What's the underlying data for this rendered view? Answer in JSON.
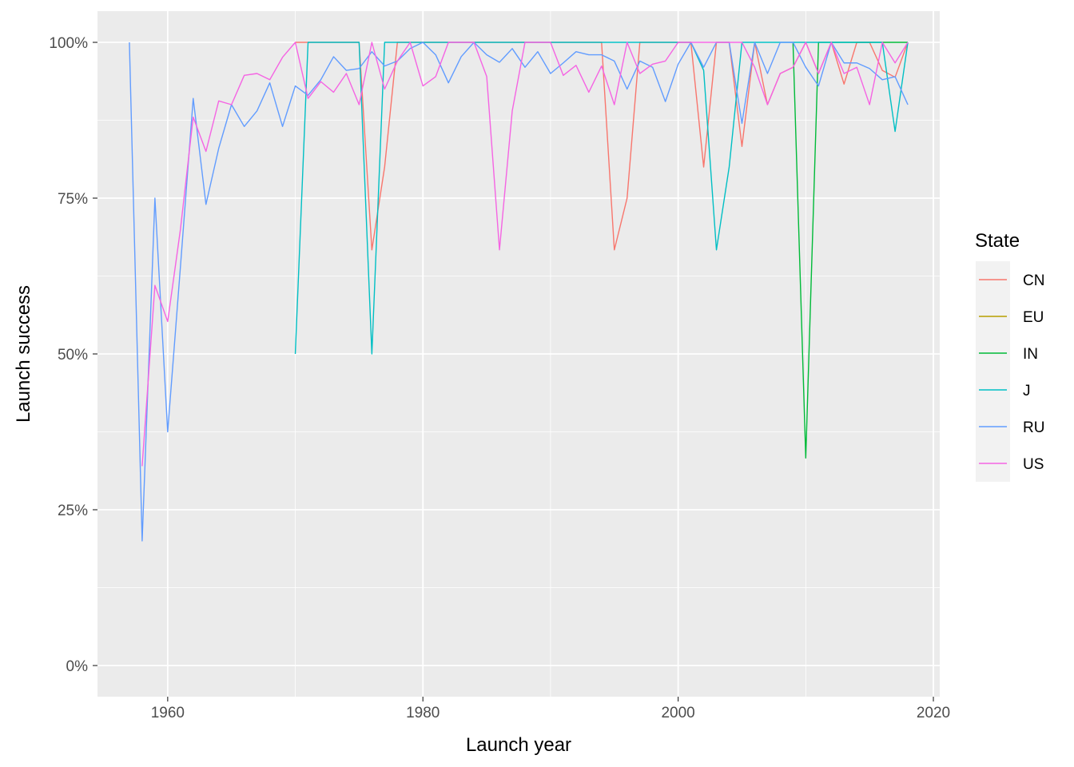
{
  "chart_data": {
    "type": "line",
    "xlabel": "Launch year",
    "ylabel": "Launch success",
    "xlim": [
      1954.5,
      2020.5
    ],
    "ylim": [
      -0.05,
      1.05
    ],
    "x_ticks": [
      1960,
      1980,
      2000,
      2020
    ],
    "x_tick_labels": [
      "1960",
      "1980",
      "2000",
      "2020"
    ],
    "y_ticks": [
      0,
      0.25,
      0.5,
      0.75,
      1.0
    ],
    "y_tick_labels": [
      "0%",
      "25%",
      "50%",
      "75%",
      "100%"
    ],
    "grid": true,
    "background": "#EBEBEB",
    "legend": {
      "title": "State",
      "position": "right"
    },
    "series": [
      {
        "name": "CN",
        "color": "#F8766D",
        "points": [
          [
            1970,
            1
          ],
          [
            1971,
            1
          ],
          [
            1972,
            1
          ],
          [
            1973,
            1
          ],
          [
            1974,
            1
          ],
          [
            1975,
            1
          ],
          [
            1976,
            0.667
          ],
          [
            1977,
            0.8
          ],
          [
            1978,
            1
          ],
          [
            1979,
            1
          ],
          [
            1980,
            1
          ],
          [
            1981,
            1
          ],
          [
            1982,
            1
          ],
          [
            1983,
            1
          ],
          [
            1984,
            1
          ],
          [
            1985,
            1
          ],
          [
            1986,
            1
          ],
          [
            1987,
            1
          ],
          [
            1988,
            1
          ],
          [
            1989,
            1
          ],
          [
            1990,
            1
          ],
          [
            1991,
            1
          ],
          [
            1992,
            1
          ],
          [
            1993,
            1
          ],
          [
            1994,
            1
          ],
          [
            1995,
            0.667
          ],
          [
            1996,
            0.75
          ],
          [
            1997,
            1
          ],
          [
            1998,
            1
          ],
          [
            1999,
            1
          ],
          [
            2000,
            1
          ],
          [
            2001,
            1
          ],
          [
            2002,
            0.8
          ],
          [
            2003,
            1
          ],
          [
            2004,
            1
          ],
          [
            2005,
            0.833
          ],
          [
            2006,
            1
          ],
          [
            2007,
            0.9
          ],
          [
            2008,
            0.95
          ],
          [
            2009,
            0.96
          ],
          [
            2010,
            1
          ],
          [
            2011,
            0.95
          ],
          [
            2012,
            1
          ],
          [
            2013,
            0.933
          ],
          [
            2014,
            1
          ],
          [
            2015,
            1
          ],
          [
            2016,
            0.955
          ],
          [
            2017,
            0.944
          ],
          [
            2018,
            1
          ]
        ]
      },
      {
        "name": "EU",
        "color": "#B79F00",
        "points": []
      },
      {
        "name": "IN",
        "color": "#00BA38",
        "points": [
          [
            2009,
            1
          ],
          [
            2010,
            0.333
          ],
          [
            2011,
            1
          ],
          [
            2012,
            1
          ],
          [
            2013,
            1
          ],
          [
            2014,
            1
          ],
          [
            2015,
            1
          ],
          [
            2016,
            1
          ],
          [
            2017,
            1
          ],
          [
            2018,
            1
          ]
        ]
      },
      {
        "name": "J",
        "color": "#00BFC4",
        "points": [
          [
            1970,
            0.5
          ],
          [
            1971,
            1
          ],
          [
            1972,
            1
          ],
          [
            1973,
            1
          ],
          [
            1974,
            1
          ],
          [
            1975,
            1
          ],
          [
            1976,
            0.5
          ],
          [
            1977,
            1
          ],
          [
            1978,
            1
          ],
          [
            1979,
            1
          ],
          [
            1980,
            1
          ],
          [
            1981,
            1
          ],
          [
            1982,
            1
          ],
          [
            1983,
            1
          ],
          [
            1984,
            1
          ],
          [
            1985,
            1
          ],
          [
            1986,
            1
          ],
          [
            1987,
            1
          ],
          [
            1988,
            1
          ],
          [
            1989,
            1
          ],
          [
            1990,
            1
          ],
          [
            1991,
            1
          ],
          [
            1992,
            1
          ],
          [
            1993,
            1
          ],
          [
            1994,
            1
          ],
          [
            1995,
            1
          ],
          [
            1996,
            1
          ],
          [
            1997,
            1
          ],
          [
            1998,
            1
          ],
          [
            1999,
            1
          ],
          [
            2000,
            1
          ],
          [
            2001,
            1
          ],
          [
            2002,
            0.955
          ],
          [
            2003,
            0.667
          ],
          [
            2004,
            0.8
          ],
          [
            2005,
            1
          ],
          [
            2006,
            1
          ],
          [
            2007,
            1
          ],
          [
            2008,
            1
          ],
          [
            2009,
            1
          ],
          [
            2010,
            1
          ],
          [
            2011,
            1
          ],
          [
            2012,
            1
          ],
          [
            2013,
            1
          ],
          [
            2014,
            1
          ],
          [
            2015,
            1
          ],
          [
            2016,
            1
          ],
          [
            2017,
            0.857
          ],
          [
            2018,
            1
          ]
        ]
      },
      {
        "name": "RU",
        "color": "#619CFF",
        "points": [
          [
            1957,
            1
          ],
          [
            1958,
            0.2
          ],
          [
            1959,
            0.75
          ],
          [
            1960,
            0.375
          ],
          [
            1961,
            0.64
          ],
          [
            1962,
            0.91
          ],
          [
            1963,
            0.74
          ],
          [
            1964,
            0.83
          ],
          [
            1965,
            0.9
          ],
          [
            1966,
            0.865
          ],
          [
            1967,
            0.89
          ],
          [
            1968,
            0.935
          ],
          [
            1969,
            0.865
          ],
          [
            1970,
            0.93
          ],
          [
            1971,
            0.915
          ],
          [
            1972,
            0.94
          ],
          [
            1973,
            0.977
          ],
          [
            1974,
            0.955
          ],
          [
            1975,
            0.958
          ],
          [
            1976,
            0.985
          ],
          [
            1977,
            0.962
          ],
          [
            1978,
            0.97
          ],
          [
            1979,
            0.99
          ],
          [
            1980,
            1
          ],
          [
            1981,
            0.98
          ],
          [
            1982,
            0.935
          ],
          [
            1983,
            0.977
          ],
          [
            1984,
            1
          ],
          [
            1985,
            0.98
          ],
          [
            1986,
            0.968
          ],
          [
            1987,
            0.99
          ],
          [
            1988,
            0.96
          ],
          [
            1989,
            0.985
          ],
          [
            1990,
            0.95
          ],
          [
            1991,
            0.967
          ],
          [
            1992,
            0.985
          ],
          [
            1993,
            0.98
          ],
          [
            1994,
            0.98
          ],
          [
            1995,
            0.97
          ],
          [
            1996,
            0.925
          ],
          [
            1997,
            0.97
          ],
          [
            1998,
            0.96
          ],
          [
            1999,
            0.905
          ],
          [
            2000,
            0.965
          ],
          [
            2001,
            1
          ],
          [
            2002,
            0.96
          ],
          [
            2003,
            1
          ],
          [
            2004,
            1
          ],
          [
            2005,
            0.87
          ],
          [
            2006,
            1
          ],
          [
            2007,
            0.95
          ],
          [
            2008,
            1
          ],
          [
            2009,
            1
          ],
          [
            2010,
            0.96
          ],
          [
            2011,
            0.93
          ],
          [
            2012,
            1
          ],
          [
            2013,
            0.967
          ],
          [
            2014,
            0.967
          ],
          [
            2015,
            0.958
          ],
          [
            2016,
            0.94
          ],
          [
            2017,
            0.945
          ],
          [
            2018,
            0.9
          ]
        ]
      },
      {
        "name": "US",
        "color": "#F564E3",
        "points": [
          [
            1958,
            0.32
          ],
          [
            1959,
            0.61
          ],
          [
            1960,
            0.552
          ],
          [
            1961,
            0.7
          ],
          [
            1962,
            0.88
          ],
          [
            1963,
            0.825
          ],
          [
            1964,
            0.906
          ],
          [
            1965,
            0.9
          ],
          [
            1966,
            0.947
          ],
          [
            1967,
            0.95
          ],
          [
            1968,
            0.94
          ],
          [
            1969,
            0.976
          ],
          [
            1970,
            1
          ],
          [
            1971,
            0.91
          ],
          [
            1972,
            0.937
          ],
          [
            1973,
            0.92
          ],
          [
            1974,
            0.95
          ],
          [
            1975,
            0.9
          ],
          [
            1976,
            1
          ],
          [
            1977,
            0.925
          ],
          [
            1978,
            0.97
          ],
          [
            1979,
            1
          ],
          [
            1980,
            0.93
          ],
          [
            1981,
            0.945
          ],
          [
            1982,
            1
          ],
          [
            1983,
            1
          ],
          [
            1984,
            1
          ],
          [
            1985,
            0.945
          ],
          [
            1986,
            0.667
          ],
          [
            1987,
            0.89
          ],
          [
            1988,
            1
          ],
          [
            1989,
            1
          ],
          [
            1990,
            1
          ],
          [
            1991,
            0.947
          ],
          [
            1992,
            0.963
          ],
          [
            1993,
            0.92
          ],
          [
            1994,
            0.962
          ],
          [
            1995,
            0.9
          ],
          [
            1996,
            1
          ],
          [
            1997,
            0.95
          ],
          [
            1998,
            0.965
          ],
          [
            1999,
            0.97
          ],
          [
            2000,
            1
          ],
          [
            2001,
            1
          ],
          [
            2002,
            1
          ],
          [
            2003,
            1
          ],
          [
            2004,
            1
          ],
          [
            2005,
            1
          ],
          [
            2006,
            0.96
          ],
          [
            2007,
            0.9
          ],
          [
            2008,
            0.95
          ],
          [
            2009,
            0.96
          ],
          [
            2010,
            1
          ],
          [
            2011,
            0.95
          ],
          [
            2012,
            1
          ],
          [
            2013,
            0.95
          ],
          [
            2014,
            0.96
          ],
          [
            2015,
            0.9
          ],
          [
            2016,
            1
          ],
          [
            2017,
            0.967
          ],
          [
            2018,
            1
          ]
        ]
      }
    ]
  }
}
